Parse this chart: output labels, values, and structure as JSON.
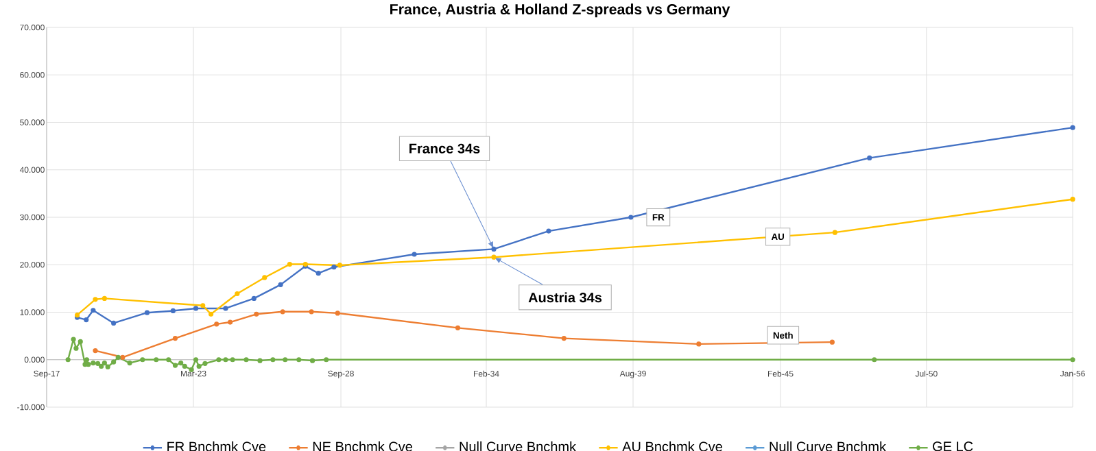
{
  "chart_data": {
    "type": "line",
    "title": "France, Austria & Holland Z-spreads vs Germany",
    "xlim": [
      "2017-09-20",
      "2056-01-01"
    ],
    "xticks": [
      {
        "value": "2017-09-20",
        "label": "Sep-17"
      },
      {
        "value": "2023-03-13",
        "label": "Mar-23"
      },
      {
        "value": "2028-09-12",
        "label": "Sep-28"
      },
      {
        "value": "2034-02-14",
        "label": "Feb-34"
      },
      {
        "value": "2039-08-07",
        "label": "Aug-39"
      },
      {
        "value": "2045-02-06",
        "label": "Feb-45"
      },
      {
        "value": "2050-07-19",
        "label": "Jul-50"
      },
      {
        "value": "2056-01-01",
        "label": "Jan-56"
      }
    ],
    "ylim": [
      -10,
      70
    ],
    "yticks": [
      {
        "value": -10,
        "label": "-10.000"
      },
      {
        "value": 0,
        "label": "0.000"
      },
      {
        "value": 10,
        "label": "10.000"
      },
      {
        "value": 20,
        "label": "20.000"
      },
      {
        "value": 30,
        "label": "30.000"
      },
      {
        "value": 40,
        "label": "40.000"
      },
      {
        "value": 50,
        "label": "50.000"
      },
      {
        "value": 60,
        "label": "60.000"
      },
      {
        "value": 70,
        "label": "70.000"
      }
    ],
    "grid": true,
    "legend": "bottom",
    "marker": "circle",
    "line_style": "solid",
    "series": [
      {
        "name": "FR Bnchmk Cve",
        "color": "#4472c4",
        "x": [
          "2018-11-10",
          "2019-03-13",
          "2019-06-16",
          "2020-03-20",
          "2021-06-20",
          "2022-06-09",
          "2023-04-15",
          "2024-05-25",
          "2025-06-16",
          "2026-06-13",
          "2027-05-17",
          "2027-11-10",
          "2028-06-09",
          "2031-06-09",
          "2034-05-28",
          "2036-06-13",
          "2039-07-08",
          "2048-06-02",
          "2056-01-01"
        ],
        "values": [
          8.9,
          8.4,
          10.4,
          7.7,
          9.9,
          10.3,
          10.8,
          10.8,
          12.9,
          15.8,
          19.7,
          18.2,
          19.5,
          22.2,
          23.3,
          27.1,
          30.0,
          42.5,
          48.9
        ]
      },
      {
        "name": "NE Bnchmk Cve",
        "color": "#ed7d31",
        "x": [
          "2019-07-15",
          "2020-07-22",
          "2022-07-08",
          "2024-01-22",
          "2024-07-26",
          "2025-07-18",
          "2026-07-11",
          "2027-08-07",
          "2028-07-29",
          "2033-01-22",
          "2037-01-08",
          "2042-01-19",
          "2047-01-11"
        ],
        "values": [
          1.9,
          0.5,
          4.5,
          7.5,
          7.9,
          9.6,
          10.1,
          10.1,
          9.8,
          6.7,
          4.5,
          3.3,
          3.7
        ]
      },
      {
        "name": "Null Curve  Bnchmk",
        "color": "#a5a5a5"
      },
      {
        "name": "AU Bnchmk Cve",
        "color": "#ffc000",
        "x": [
          "2018-11-10",
          "2019-07-15",
          "2019-11-17",
          "2023-07-19",
          "2023-11-07",
          "2024-10-30",
          "2025-11-07",
          "2026-10-15",
          "2027-05-17",
          "2028-08-28",
          "2034-05-28",
          "2047-02-17",
          "2056-01-01"
        ],
        "values": [
          9.4,
          12.7,
          12.9,
          11.4,
          9.6,
          13.9,
          17.3,
          20.1,
          20.1,
          19.9,
          21.6,
          26.8,
          33.8
        ]
      },
      {
        "name": "Null Curve  Bnchmk",
        "color": "#5b9bd5"
      },
      {
        "name": "GE LC",
        "color": "#70ad47",
        "x": [
          "2018-07-08",
          "2018-09-20",
          "2018-10-26",
          "2018-12-24",
          "2019-02-25",
          "2019-03-20",
          "2019-04-11",
          "2019-06-16",
          "2019-08-18",
          "2019-10-04",
          "2019-11-17",
          "2020-01-01",
          "2020-03-20",
          "2020-05-21",
          "2020-10-26",
          "2021-04-19",
          "2021-10-22",
          "2022-04-08",
          "2022-07-08",
          "2022-09-23",
          "2022-11-14",
          "2023-02-14",
          "2023-04-15",
          "2023-05-28",
          "2023-08-18",
          "2024-02-21",
          "2024-05-25",
          "2024-08-28",
          "2025-03-02",
          "2025-09-05",
          "2026-02-28",
          "2026-08-14",
          "2027-02-17",
          "2027-08-21",
          "2028-02-25",
          "2048-08-07",
          "2056-01-01"
        ],
        "values": [
          0,
          4.3,
          2.4,
          3.8,
          -1.0,
          0,
          -1.0,
          -0.7,
          -0.8,
          -1.4,
          -0.7,
          -1.5,
          -0.5,
          0.5,
          -0.7,
          0,
          0,
          0,
          -1.2,
          -0.7,
          -1.4,
          -2.1,
          0,
          -1.4,
          -0.8,
          0,
          0,
          0,
          0,
          -0.2,
          0,
          0,
          0,
          -0.2,
          0,
          0,
          0
        ]
      }
    ],
    "annotations": [
      {
        "text": "France 34s",
        "x": "2034-05-28",
        "y": 23.3
      },
      {
        "text": "Austria 34s",
        "x": "2034-05-28",
        "y": 21.6
      },
      {
        "text": "FR",
        "x": "2039-07-08",
        "y": 30.0
      },
      {
        "text": "AU",
        "x": "2045-01-01",
        "y": 25.9
      },
      {
        "text": "Neth",
        "x": "2045-03-13",
        "y": 3.6
      }
    ]
  }
}
